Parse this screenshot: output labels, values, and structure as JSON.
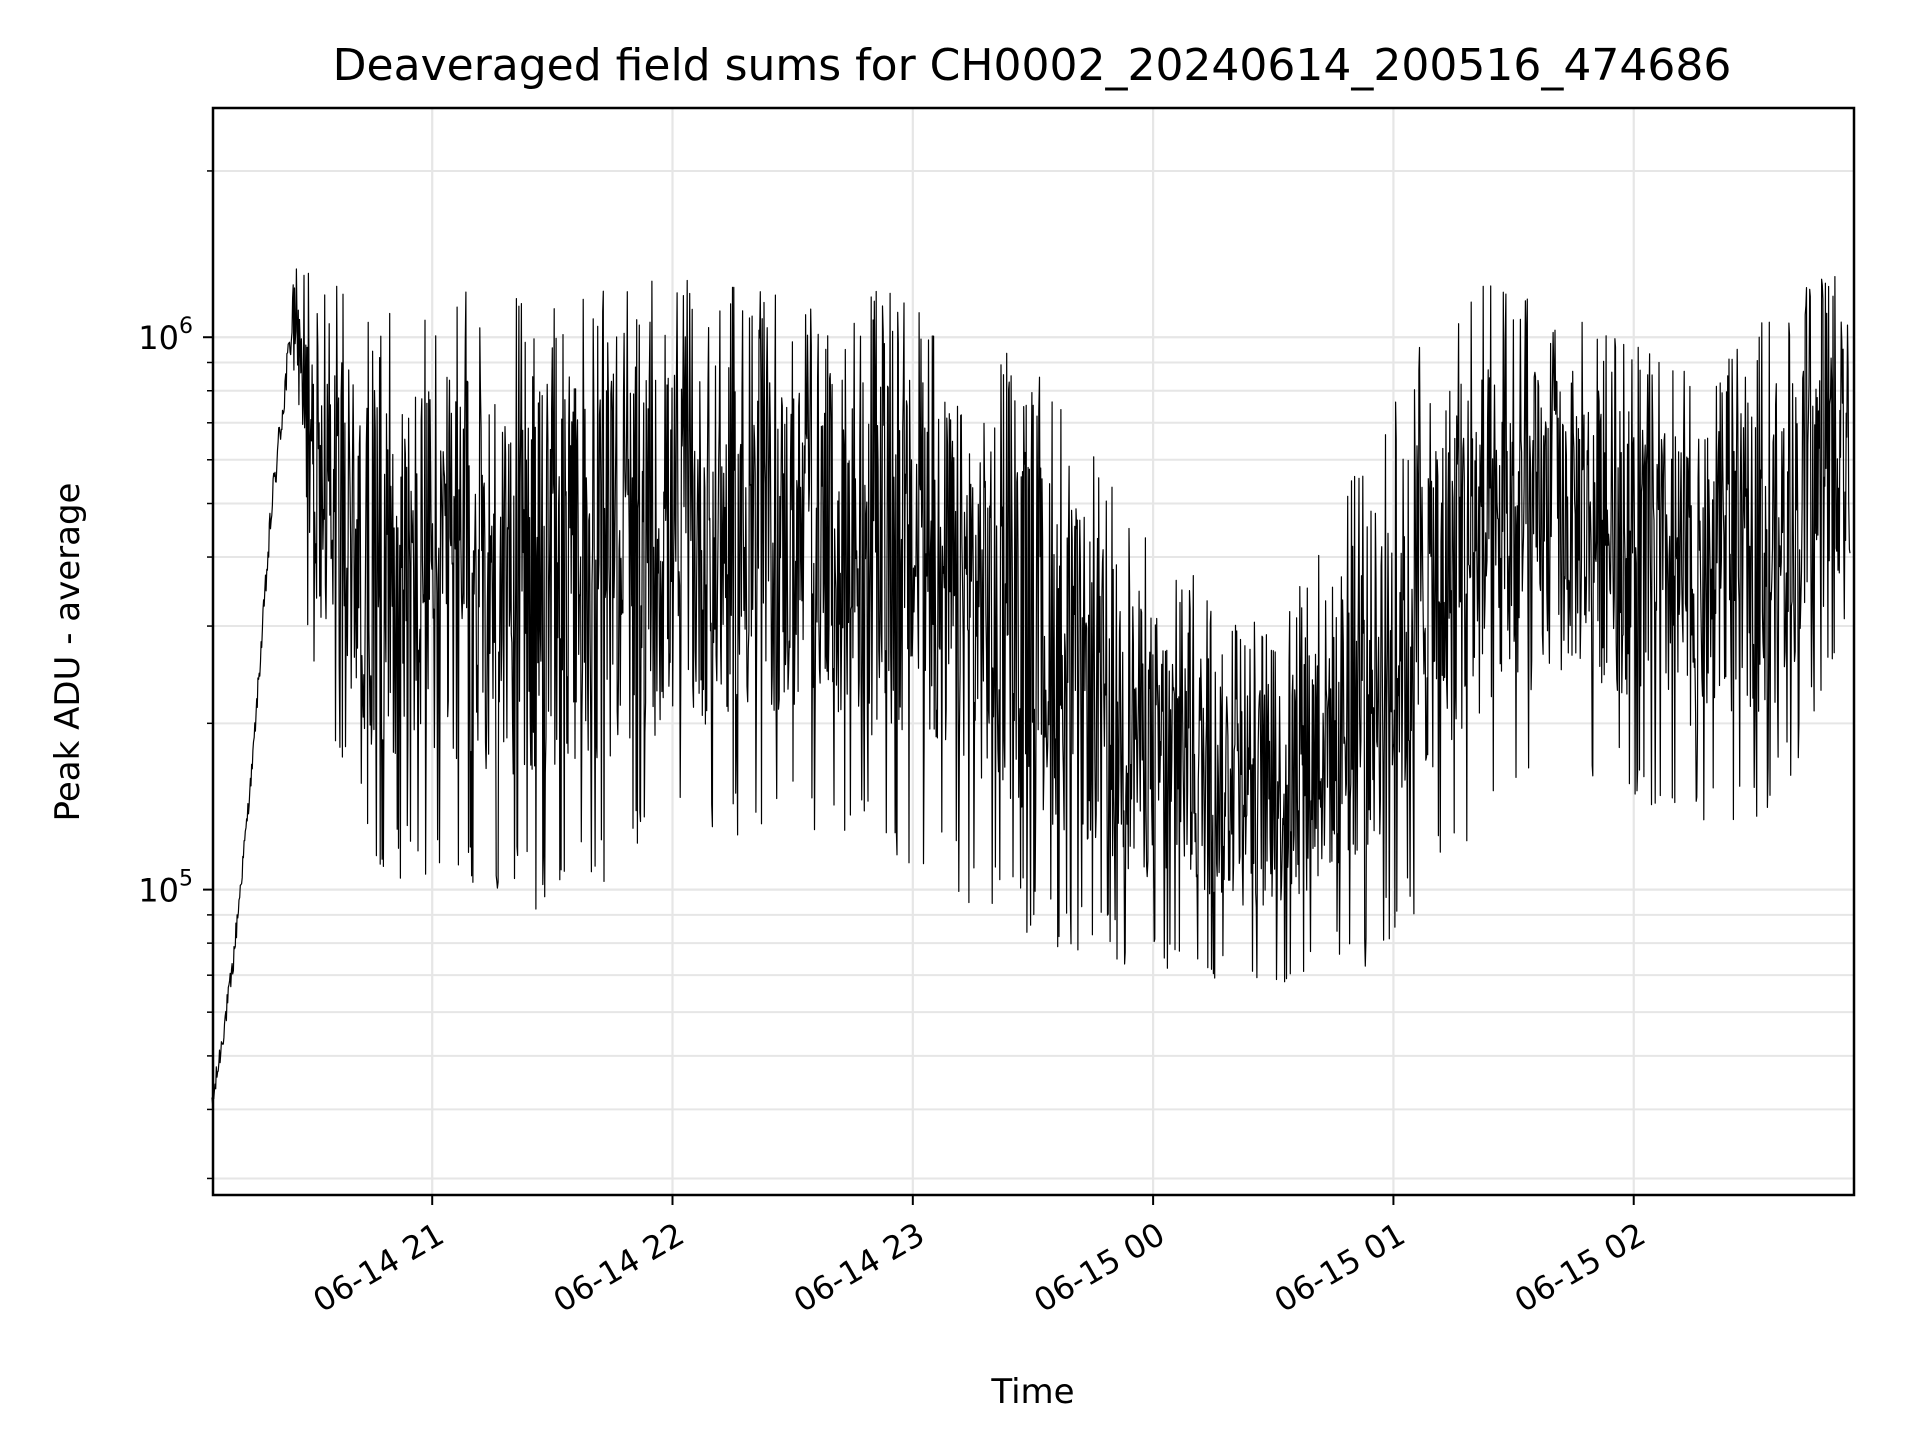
{
  "chart_data": {
    "type": "line",
    "title": "Deaveraged field sums for CH0002_20240614_200516_474686",
    "xlabel": "Time",
    "ylabel": "Peak ADU - average",
    "yscale": "log",
    "ylim": [
      28000,
      2600000
    ],
    "xlim": [
      "2024-06-14 20:05:16",
      "2024-06-15 02:55:00"
    ],
    "grid": true,
    "line_color": "#000000",
    "grid_color": "#e6e6e6",
    "x_ticks": [
      {
        "t": "2024-06-14 21:00",
        "label": "06-14 21"
      },
      {
        "t": "2024-06-14 22:00",
        "label": "06-14 22"
      },
      {
        "t": "2024-06-14 23:00",
        "label": "06-14 23"
      },
      {
        "t": "2024-06-15 00:00",
        "label": "06-15 00"
      },
      {
        "t": "2024-06-15 01:00",
        "label": "06-15 01"
      },
      {
        "t": "2024-06-15 02:00",
        "label": "06-15 02"
      }
    ],
    "y_major_ticks": [
      {
        "value": 100000,
        "base": "10",
        "exp": "5"
      },
      {
        "value": 1000000,
        "base": "10",
        "exp": "6"
      }
    ],
    "y_minor_ticks": [
      30000,
      40000,
      50000,
      60000,
      70000,
      80000,
      90000,
      200000,
      300000,
      400000,
      500000,
      600000,
      700000,
      800000,
      900000,
      2000000
    ],
    "series_envelope": {
      "time": [
        "2024-06-14 20:05",
        "2024-06-14 20:10",
        "2024-06-14 20:15",
        "2024-06-14 20:20",
        "2024-06-14 20:25",
        "2024-06-14 20:30",
        "2024-06-14 20:45",
        "2024-06-14 21:00",
        "2024-06-14 21:30",
        "2024-06-14 22:00",
        "2024-06-14 22:30",
        "2024-06-14 23:00",
        "2024-06-14 23:30",
        "2024-06-15 00:00",
        "2024-06-15 00:30",
        "2024-06-15 00:55",
        "2024-06-15 01:15",
        "2024-06-15 01:45",
        "2024-06-15 02:15",
        "2024-06-15 02:35",
        "2024-06-15 02:54"
      ],
      "upper": [
        45000,
        80000,
        180000,
        600000,
        1300000,
        1100000,
        900000,
        950000,
        950000,
        1000000,
        950000,
        950000,
        700000,
        350000,
        250000,
        550000,
        1000000,
        950000,
        700000,
        900000,
        1200000
      ],
      "lower": [
        35000,
        60000,
        150000,
        400000,
        800000,
        250000,
        120000,
        110000,
        100000,
        130000,
        140000,
        120000,
        90000,
        75000,
        70000,
        80000,
        120000,
        180000,
        140000,
        150000,
        300000
      ]
    }
  }
}
